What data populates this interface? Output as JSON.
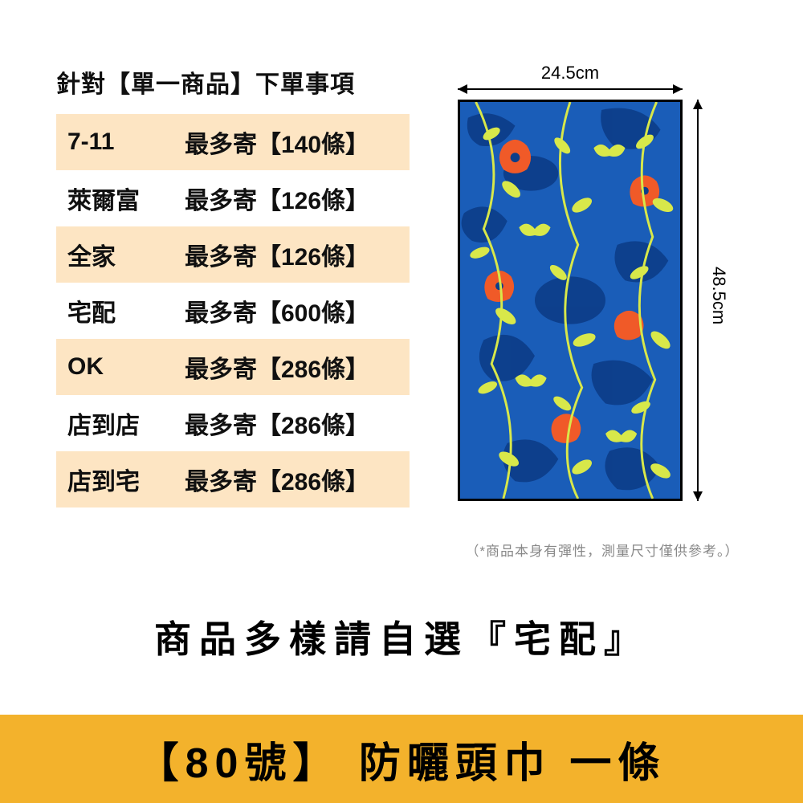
{
  "table": {
    "title": "針對【單一商品】下單事項",
    "rows": [
      {
        "store": "7-11",
        "limit": "最多寄【140條】",
        "shaded": true
      },
      {
        "store": "萊爾富",
        "limit": "最多寄【126條】",
        "shaded": false
      },
      {
        "store": "全家",
        "limit": "最多寄【126條】",
        "shaded": true
      },
      {
        "store": "宅配",
        "limit": "最多寄【600條】",
        "shaded": false
      },
      {
        "store": "OK",
        "limit": "最多寄【286條】",
        "shaded": true
      },
      {
        "store": "店到店",
        "limit": "最多寄【286條】",
        "shaded": false
      },
      {
        "store": "店到宅",
        "limit": "最多寄【286條】",
        "shaded": true
      }
    ]
  },
  "diagram": {
    "width_label": "24.5cm",
    "height_label": "48.5cm",
    "disclaimer": "（*商品本身有彈性，測量尺寸僅供參考。）",
    "colors": {
      "base": "#1a5db8",
      "dark_blue": "#0d3e8a",
      "lime": "#d8e84a",
      "orange": "#f05a28"
    }
  },
  "bottom_note": "商品多樣請自選『宅配』",
  "product_bar": "【80號】 防曬頭巾 一條"
}
